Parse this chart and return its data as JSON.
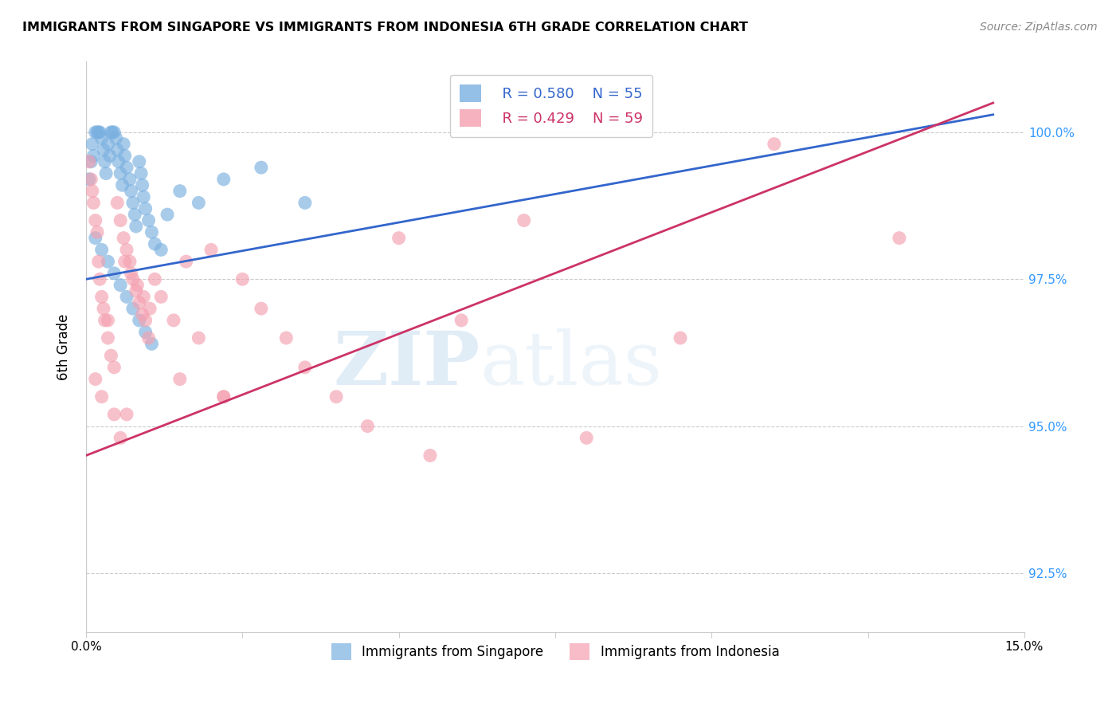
{
  "title": "IMMIGRANTS FROM SINGAPORE VS IMMIGRANTS FROM INDONESIA 6TH GRADE CORRELATION CHART",
  "source": "Source: ZipAtlas.com",
  "ylabel": "6th Grade",
  "ylabel_values": [
    92.5,
    95.0,
    97.5,
    100.0
  ],
  "xmin": 0.0,
  "xmax": 15.0,
  "ymin": 91.5,
  "ymax": 101.2,
  "legend_r1": "R = 0.580",
  "legend_n1": "N = 55",
  "legend_r2": "R = 0.429",
  "legend_n2": "N = 59",
  "color_singapore": "#7ab0e0",
  "color_indonesia": "#f4a0b0",
  "color_line_singapore": "#3366cc",
  "color_line_indonesia": "#cc3366",
  "watermark_zip": "ZIP",
  "watermark_atlas": "atlas",
  "sg_line_x0": 0.0,
  "sg_line_y0": 97.5,
  "sg_line_x1": 14.5,
  "sg_line_y1": 100.3,
  "id_line_x0": 0.0,
  "id_line_y0": 94.5,
  "id_line_x1": 14.5,
  "id_line_y1": 100.5,
  "singapore_x": [
    0.05,
    0.08,
    0.1,
    0.12,
    0.15,
    0.18,
    0.2,
    0.22,
    0.25,
    0.28,
    0.3,
    0.32,
    0.35,
    0.38,
    0.4,
    0.42,
    0.45,
    0.48,
    0.5,
    0.52,
    0.55,
    0.58,
    0.6,
    0.62,
    0.65,
    0.7,
    0.72,
    0.75,
    0.78,
    0.8,
    0.85,
    0.88,
    0.9,
    0.92,
    0.95,
    1.0,
    1.05,
    1.1,
    1.2,
    1.3,
    1.5,
    1.8,
    2.2,
    2.8,
    3.5,
    0.15,
    0.25,
    0.35,
    0.45,
    0.55,
    0.65,
    0.75,
    0.85,
    0.95,
    1.05
  ],
  "singapore_y": [
    99.2,
    99.5,
    99.8,
    99.6,
    100.0,
    100.0,
    100.0,
    100.0,
    99.9,
    99.7,
    99.5,
    99.3,
    99.8,
    99.6,
    100.0,
    100.0,
    100.0,
    99.9,
    99.7,
    99.5,
    99.3,
    99.1,
    99.8,
    99.6,
    99.4,
    99.2,
    99.0,
    98.8,
    98.6,
    98.4,
    99.5,
    99.3,
    99.1,
    98.9,
    98.7,
    98.5,
    98.3,
    98.1,
    98.0,
    98.6,
    99.0,
    98.8,
    99.2,
    99.4,
    98.8,
    98.2,
    98.0,
    97.8,
    97.6,
    97.4,
    97.2,
    97.0,
    96.8,
    96.6,
    96.4
  ],
  "indonesia_x": [
    0.05,
    0.08,
    0.1,
    0.12,
    0.15,
    0.18,
    0.2,
    0.22,
    0.25,
    0.28,
    0.3,
    0.35,
    0.4,
    0.45,
    0.5,
    0.55,
    0.6,
    0.65,
    0.7,
    0.75,
    0.8,
    0.85,
    0.9,
    0.95,
    1.0,
    1.1,
    1.2,
    1.4,
    1.6,
    1.8,
    2.0,
    2.2,
    2.5,
    2.8,
    3.2,
    3.5,
    4.0,
    4.5,
    5.0,
    5.5,
    6.0,
    7.0,
    8.0,
    9.5,
    11.0,
    13.0,
    0.62,
    0.72,
    0.82,
    0.92,
    0.15,
    0.25,
    0.35,
    0.45,
    0.55,
    0.65,
    1.02,
    1.5,
    2.2
  ],
  "indonesia_y": [
    99.5,
    99.2,
    99.0,
    98.8,
    98.5,
    98.3,
    97.8,
    97.5,
    97.2,
    97.0,
    96.8,
    96.5,
    96.2,
    96.0,
    98.8,
    98.5,
    98.2,
    98.0,
    97.8,
    97.5,
    97.3,
    97.1,
    96.9,
    96.8,
    96.5,
    97.5,
    97.2,
    96.8,
    97.8,
    96.5,
    98.0,
    95.5,
    97.5,
    97.0,
    96.5,
    96.0,
    95.5,
    95.0,
    98.2,
    94.5,
    96.8,
    98.5,
    94.8,
    96.5,
    99.8,
    98.2,
    97.8,
    97.6,
    97.4,
    97.2,
    95.8,
    95.5,
    96.8,
    95.2,
    94.8,
    95.2,
    97.0,
    95.8,
    95.5
  ]
}
